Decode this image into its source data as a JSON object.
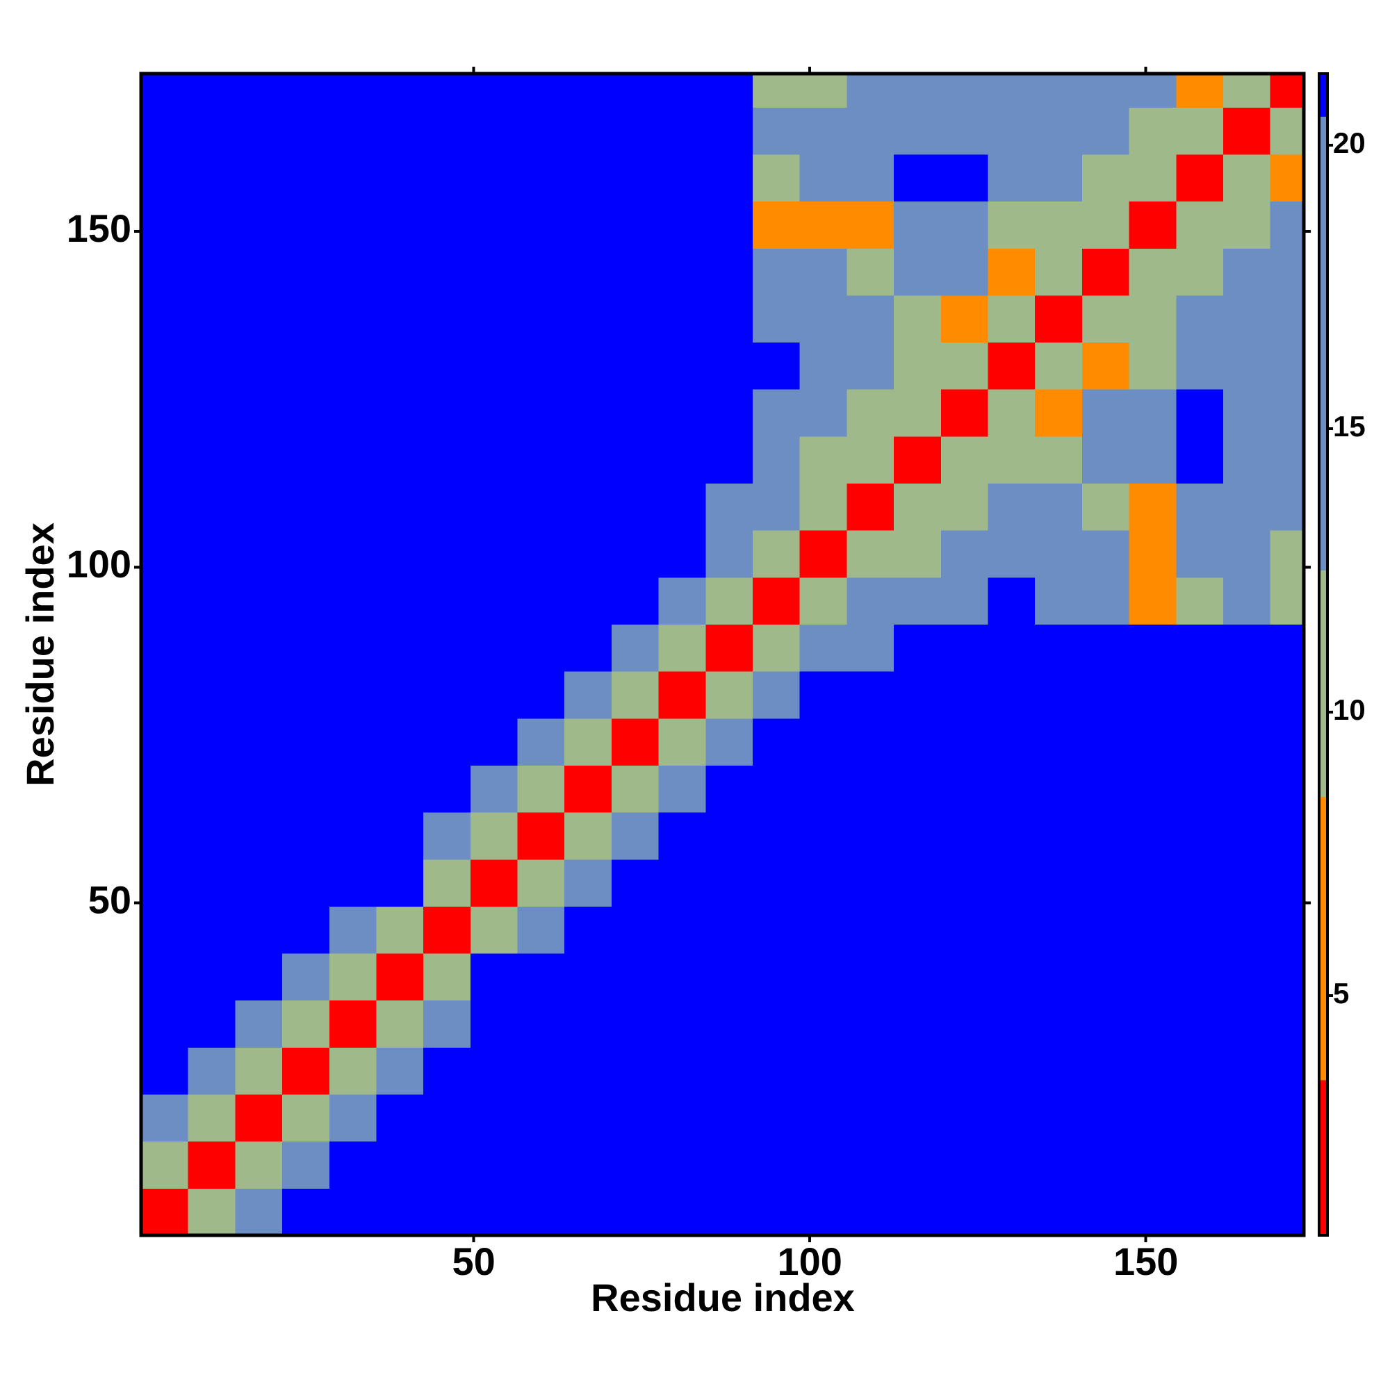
{
  "chart_data": {
    "type": "heatmap",
    "x_label": "Residue index",
    "y_label": "Residue index",
    "xlim": [
      0.5,
      173.5
    ],
    "ylim": [
      0.5,
      173.5
    ],
    "xticks": [
      50,
      100,
      150
    ],
    "yticks": [
      50,
      100,
      150
    ],
    "x_bins": [
      0.5,
      7.5,
      14.5,
      21.5,
      28.5,
      35.5,
      42.5,
      49.5,
      56.5,
      63.5,
      70.5,
      77.5,
      84.5,
      91.5,
      98.5,
      105.5,
      112.5,
      119.5,
      126.5,
      133.5,
      140.5,
      147.5,
      154.5,
      161.5,
      168.5,
      173.5
    ],
    "y_bins": [
      0.5,
      7.5,
      14.5,
      21.5,
      28.5,
      35.5,
      42.5,
      49.5,
      56.5,
      63.5,
      70.5,
      77.5,
      84.5,
      91.5,
      98.5,
      105.5,
      112.5,
      119.5,
      126.5,
      133.5,
      140.5,
      147.5,
      154.5,
      161.5,
      168.5,
      173.5
    ],
    "zlim": [
      0.77,
      21.26
    ],
    "zticks": [
      5,
      10,
      15,
      20
    ],
    "colorscale": {
      "bounds": [
        0.77,
        3.5,
        8.5,
        12.5,
        20.5,
        21.26
      ],
      "colors": [
        "#ff0000",
        "#ff8c00",
        "#9fb98a",
        "#6d8ec2",
        "#0000ff"
      ]
    },
    "values": [
      [
        3,
        10,
        16,
        21,
        21,
        21,
        21,
        21,
        21,
        21,
        21,
        21,
        21,
        21,
        21,
        21,
        21,
        21,
        21,
        21,
        21,
        21,
        21,
        21,
        21
      ],
      [
        10,
        3,
        10,
        16,
        21,
        21,
        21,
        21,
        21,
        21,
        21,
        21,
        21,
        21,
        21,
        21,
        21,
        21,
        21,
        21,
        21,
        21,
        21,
        21,
        21
      ],
      [
        16,
        10,
        3,
        10,
        16,
        21,
        21,
        21,
        21,
        21,
        21,
        21,
        21,
        21,
        21,
        21,
        21,
        21,
        21,
        21,
        21,
        21,
        21,
        21,
        21
      ],
      [
        21,
        16,
        10,
        3,
        10,
        16,
        21,
        21,
        21,
        21,
        21,
        21,
        21,
        21,
        21,
        21,
        21,
        21,
        21,
        21,
        21,
        21,
        21,
        21,
        21
      ],
      [
        21,
        21,
        16,
        10,
        3,
        10,
        16,
        21,
        21,
        21,
        21,
        21,
        21,
        21,
        21,
        21,
        21,
        21,
        21,
        21,
        21,
        21,
        21,
        21,
        21
      ],
      [
        21,
        21,
        21,
        16,
        10,
        3,
        10,
        21,
        21,
        21,
        21,
        21,
        21,
        21,
        21,
        21,
        21,
        21,
        21,
        21,
        21,
        21,
        21,
        21,
        21
      ],
      [
        21,
        21,
        21,
        21,
        16,
        10,
        3,
        10,
        18,
        21,
        21,
        21,
        21,
        21,
        21,
        21,
        21,
        21,
        21,
        21,
        21,
        21,
        21,
        21,
        21
      ],
      [
        21,
        21,
        21,
        21,
        21,
        21,
        10,
        3,
        10,
        17,
        21,
        21,
        21,
        21,
        21,
        21,
        21,
        21,
        21,
        21,
        21,
        21,
        21,
        21,
        21
      ],
      [
        21,
        21,
        21,
        21,
        21,
        21,
        18,
        10,
        3,
        10,
        18,
        21,
        21,
        21,
        21,
        21,
        21,
        21,
        21,
        21,
        21,
        21,
        21,
        21,
        21
      ],
      [
        21,
        21,
        21,
        21,
        21,
        21,
        21,
        17,
        10,
        3,
        10,
        17,
        21,
        21,
        21,
        21,
        21,
        21,
        21,
        21,
        21,
        21,
        21,
        21,
        21
      ],
      [
        21,
        21,
        21,
        21,
        21,
        21,
        21,
        21,
        18,
        10,
        3,
        10,
        14,
        21,
        21,
        21,
        21,
        21,
        21,
        21,
        21,
        21,
        21,
        21,
        21
      ],
      [
        21,
        21,
        21,
        21,
        21,
        21,
        21,
        21,
        21,
        17,
        10,
        3,
        10,
        13,
        21,
        21,
        21,
        21,
        21,
        21,
        21,
        21,
        21,
        21,
        21
      ],
      [
        21,
        21,
        21,
        21,
        21,
        21,
        21,
        21,
        21,
        21,
        14,
        10,
        3,
        9,
        14,
        17,
        21,
        21,
        21,
        21,
        21,
        21,
        21,
        21,
        21
      ],
      [
        21,
        21,
        21,
        21,
        21,
        21,
        21,
        21,
        21,
        21,
        21,
        13,
        9,
        3,
        9,
        13,
        16,
        18,
        21,
        18,
        15,
        8,
        12,
        14,
        10
      ],
      [
        21,
        21,
        21,
        21,
        21,
        21,
        21,
        21,
        21,
        21,
        21,
        21,
        14,
        9,
        3,
        9,
        12,
        16,
        18,
        16,
        13,
        7,
        13,
        15,
        9
      ],
      [
        21,
        21,
        21,
        21,
        21,
        21,
        21,
        21,
        21,
        21,
        21,
        21,
        17,
        13,
        9,
        3,
        9,
        12,
        16,
        15,
        12,
        8,
        16,
        17,
        13
      ],
      [
        21,
        21,
        21,
        21,
        21,
        21,
        21,
        21,
        21,
        21,
        21,
        21,
        21,
        16,
        12,
        9,
        3,
        9,
        10,
        12,
        15,
        17,
        21,
        17,
        15
      ],
      [
        21,
        21,
        21,
        21,
        21,
        21,
        21,
        21,
        21,
        21,
        21,
        21,
        21,
        18,
        16,
        12,
        9,
        3,
        9,
        8,
        13,
        17,
        21,
        16,
        14
      ],
      [
        21,
        21,
        21,
        21,
        21,
        21,
        21,
        21,
        21,
        21,
        21,
        21,
        21,
        21,
        18,
        16,
        10,
        9,
        3,
        9,
        7,
        11,
        15,
        17,
        16
      ],
      [
        21,
        21,
        21,
        21,
        21,
        21,
        21,
        21,
        21,
        21,
        21,
        21,
        21,
        18,
        16,
        15,
        12,
        8,
        9,
        3,
        9,
        9,
        14,
        16,
        15
      ],
      [
        21,
        21,
        21,
        21,
        21,
        21,
        21,
        21,
        21,
        21,
        21,
        21,
        21,
        15,
        13,
        12,
        15,
        13,
        7,
        9,
        3,
        9,
        10,
        14,
        17
      ],
      [
        21,
        21,
        21,
        21,
        21,
        21,
        21,
        21,
        21,
        21,
        21,
        21,
        21,
        8,
        7,
        8,
        17,
        17,
        11,
        9,
        9,
        3,
        9,
        9,
        13
      ],
      [
        21,
        21,
        21,
        21,
        21,
        21,
        21,
        21,
        21,
        21,
        21,
        21,
        21,
        12,
        13,
        16,
        21,
        21,
        15,
        14,
        10,
        9,
        3,
        9,
        8
      ],
      [
        21,
        21,
        21,
        21,
        21,
        21,
        21,
        21,
        21,
        21,
        21,
        21,
        21,
        14,
        15,
        17,
        17,
        16,
        17,
        16,
        14,
        9,
        9,
        3,
        9
      ],
      [
        21,
        21,
        21,
        21,
        21,
        21,
        21,
        21,
        21,
        21,
        21,
        21,
        21,
        10,
        9,
        13,
        15,
        14,
        16,
        15,
        17,
        13,
        8,
        9,
        3
      ]
    ]
  }
}
